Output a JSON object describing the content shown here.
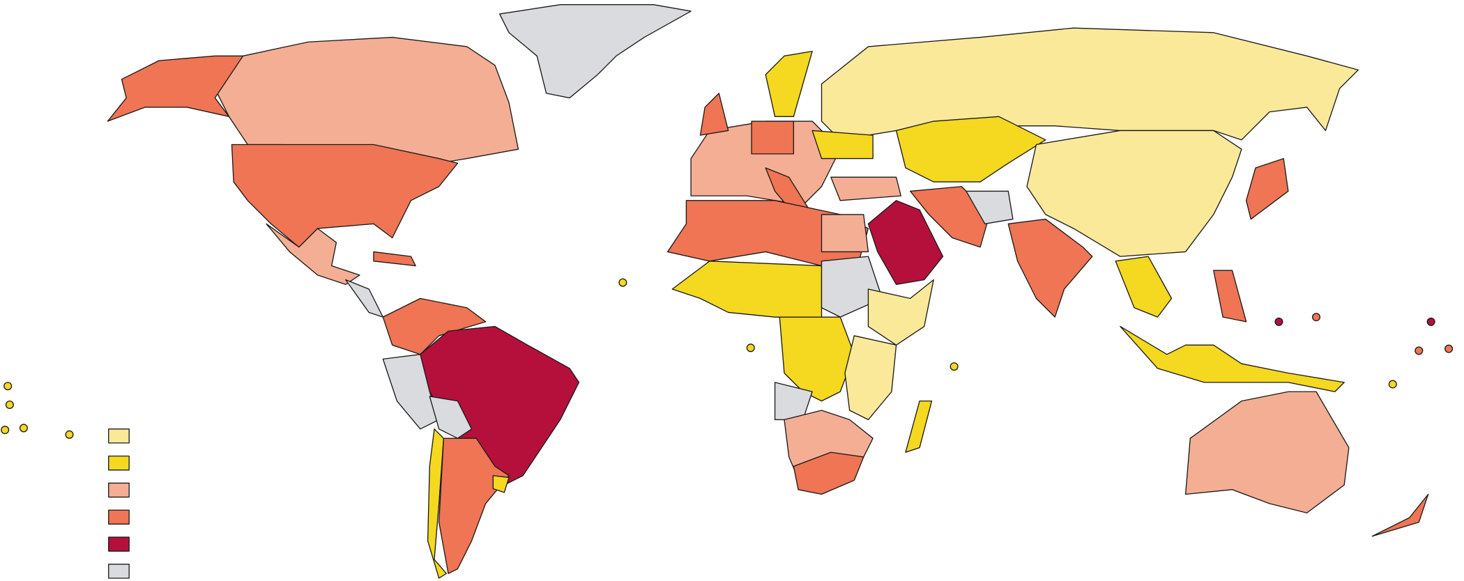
{
  "legend": {
    "colors": [
      "#fbe99a",
      "#f5d820",
      "#f4ae94",
      "#ef7554",
      "#b5103c",
      "#d9dbde"
    ]
  }
}
